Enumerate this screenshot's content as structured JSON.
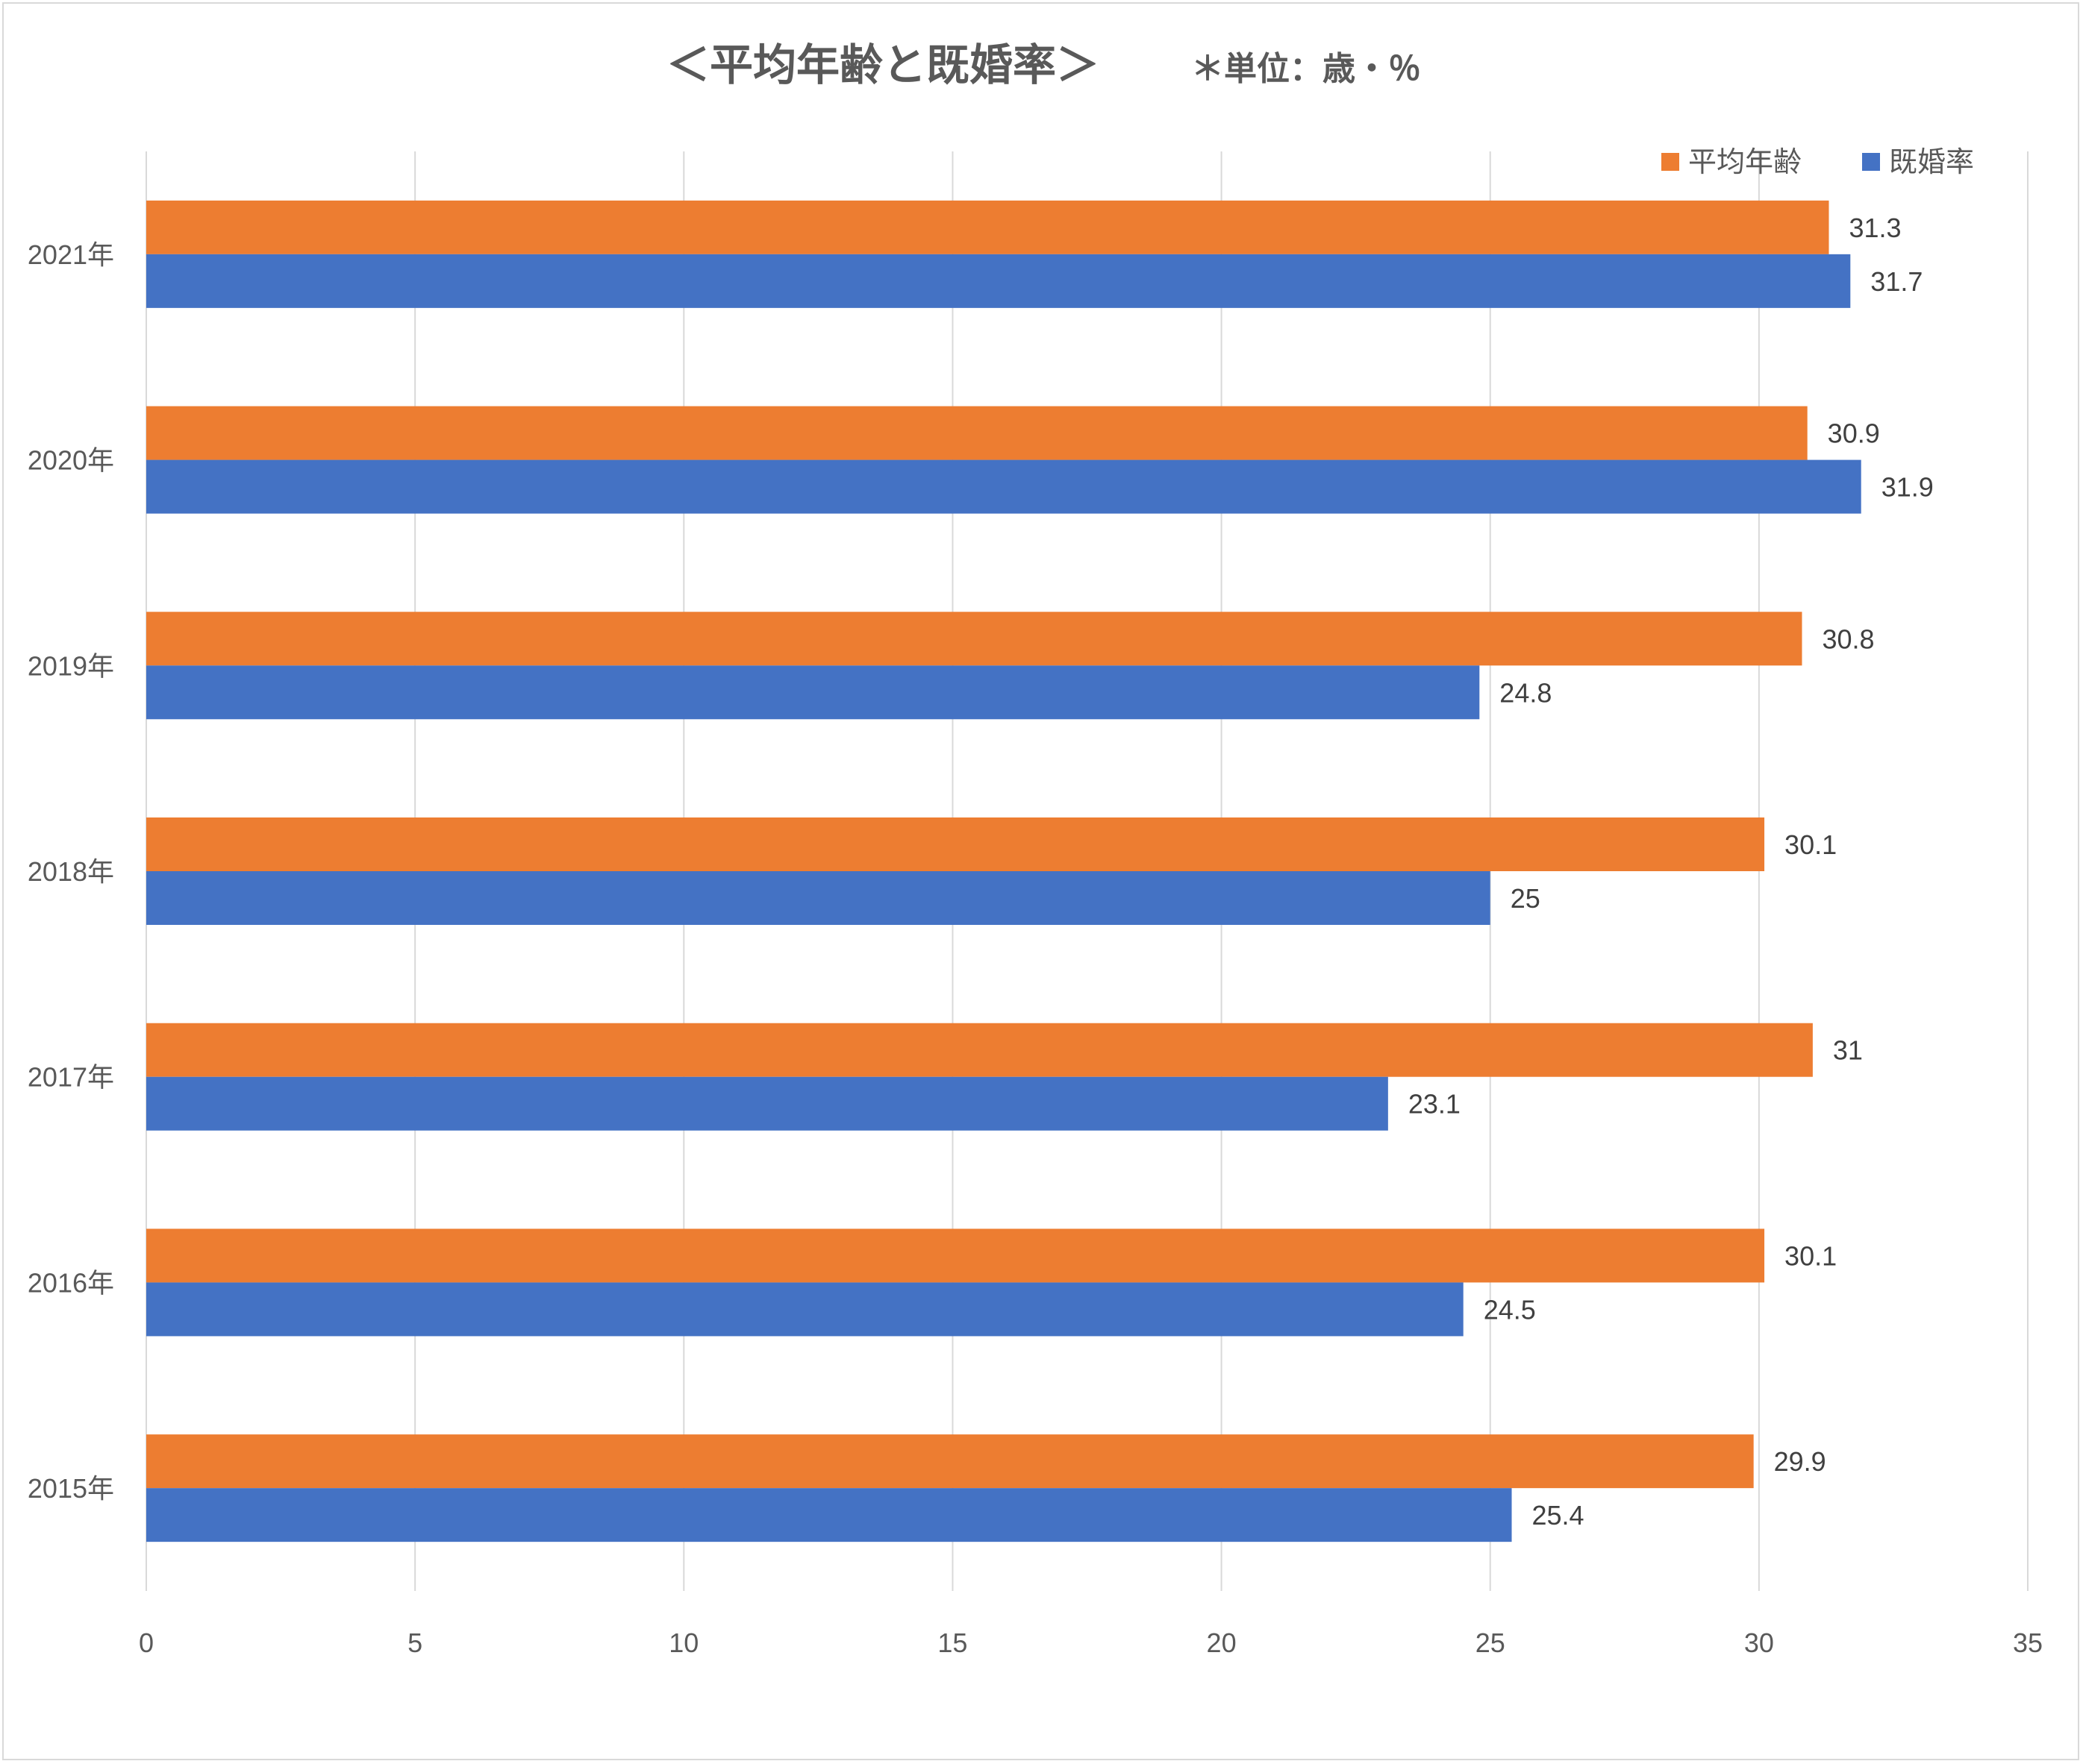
{
  "chart_data": {
    "type": "bar",
    "orientation": "horizontal",
    "title": "＜平均年齢と既婚率＞",
    "subtitle": "＊単位：歳・％",
    "categories": [
      "2021年",
      "2020年",
      "2019年",
      "2018年",
      "2017年",
      "2016年",
      "2015年"
    ],
    "series": [
      {
        "name": "平均年齢",
        "color": "#ed7d31",
        "values": [
          31.3,
          30.9,
          30.8,
          30.1,
          31,
          30.1,
          29.9
        ],
        "labels": [
          "31.3",
          "30.9",
          "30.8",
          "30.1",
          "31",
          "30.1",
          "29.9"
        ]
      },
      {
        "name": "既婚率",
        "color": "#4472c4",
        "values": [
          31.7,
          31.9,
          24.8,
          25,
          23.1,
          24.5,
          25.4
        ],
        "labels": [
          "31.7",
          "31.9",
          "24.8",
          "25",
          "23.1",
          "24.5",
          "25.4"
        ]
      }
    ],
    "xlim": [
      0,
      35
    ],
    "xticks": [
      "0",
      "5",
      "10",
      "15",
      "20",
      "25",
      "30",
      "35"
    ],
    "xlabel": "",
    "ylabel": "",
    "grid": "vertical",
    "legend_position": "top-right"
  }
}
